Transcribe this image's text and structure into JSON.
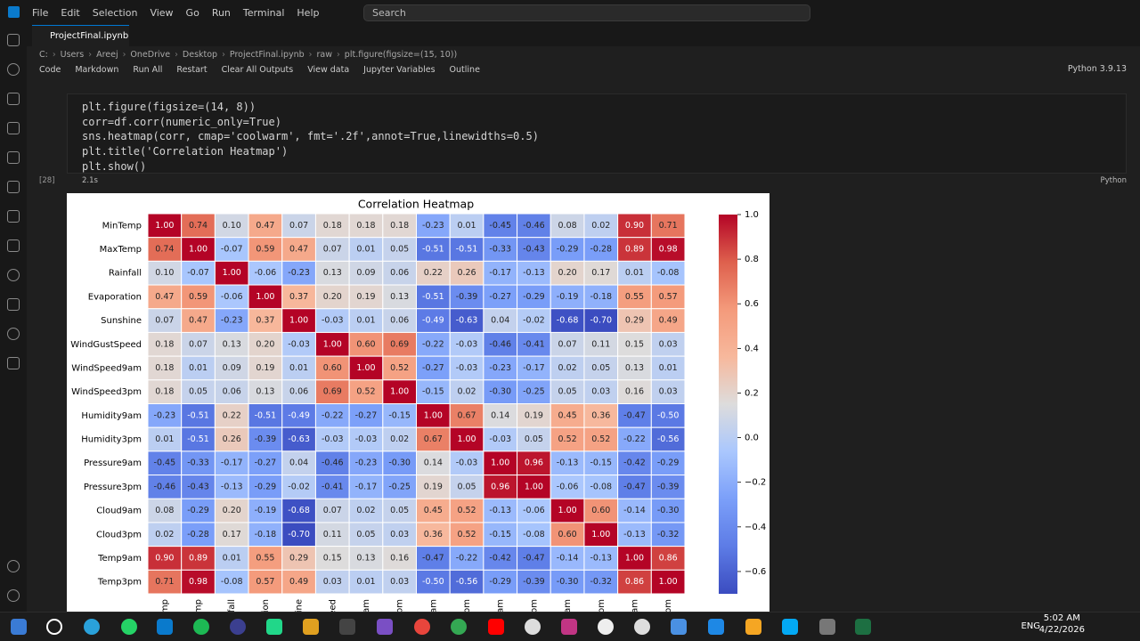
{
  "menu": [
    "File",
    "Edit",
    "Selection",
    "View",
    "Go",
    "Run",
    "Terminal",
    "Help"
  ],
  "search": "Search",
  "tab": "ProjectFinal.ipynb",
  "breadcrumb": [
    "C:",
    "Users",
    "Areej",
    "OneDrive",
    "Desktop",
    "ProjectFinal.ipynb",
    "raw",
    "plt.figure(figsize=(15, 10))"
  ],
  "toolbar": [
    "Code",
    "Markdown",
    "Run All",
    "Restart",
    "Clear All Outputs",
    "View data",
    "Jupyter Variables",
    "Outline"
  ],
  "kernel": "Python 3.9.13",
  "cell": {
    "exec_count": "[28]",
    "time": "2.1s",
    "language": "Python",
    "lines": [
      "plt.figure(figsize=(14, 8))",
      "corr=df.corr(numeric_only=True)",
      "sns.heatmap(corr, cmap='coolwarm', fmt='.2f',annot=True,linewidths=0.5)",
      "plt.title('Correlation Heatmap')",
      "plt.show()"
    ]
  },
  "chart_data": {
    "type": "heatmap",
    "title": "Correlation Heatmap",
    "cmap": "coolwarm",
    "categories": [
      "MinTemp",
      "MaxTemp",
      "Rainfall",
      "Evaporation",
      "Sunshine",
      "WindGustSpeed",
      "WindSpeed9am",
      "WindSpeed3pm",
      "Humidity9am",
      "Humidity3pm",
      "Pressure9am",
      "Pressure3pm",
      "Cloud9am",
      "Cloud3pm",
      "Temp9am",
      "Temp3pm"
    ],
    "values": [
      [
        1,
        0.74,
        0.1,
        0.47,
        0.07,
        0.18,
        0.18,
        0.18,
        -0.23,
        0.01,
        -0.45,
        -0.46,
        0.08,
        0.02,
        0.9,
        0.71
      ],
      [
        0.74,
        1,
        -0.07,
        0.59,
        0.47,
        0.07,
        0.01,
        0.05,
        -0.51,
        -0.51,
        -0.33,
        -0.43,
        -0.29,
        -0.28,
        0.89,
        0.98
      ],
      [
        0.1,
        -0.07,
        1,
        -0.06,
        -0.23,
        0.13,
        0.09,
        0.06,
        0.22,
        0.26,
        -0.17,
        -0.13,
        0.2,
        0.17,
        0.01,
        -0.08
      ],
      [
        0.47,
        0.59,
        -0.06,
        1,
        0.37,
        0.2,
        0.19,
        0.13,
        -0.51,
        -0.39,
        -0.27,
        -0.29,
        -0.19,
        -0.18,
        0.55,
        0.57
      ],
      [
        0.07,
        0.47,
        -0.23,
        0.37,
        1,
        -0.03,
        0.01,
        0.06,
        -0.49,
        -0.63,
        0.04,
        -0.02,
        -0.68,
        -0.7,
        0.29,
        0.49
      ],
      [
        0.18,
        0.07,
        0.13,
        0.2,
        -0.03,
        1,
        0.6,
        0.69,
        -0.22,
        -0.03,
        -0.46,
        -0.41,
        0.07,
        0.11,
        0.15,
        0.03
      ],
      [
        0.18,
        0.01,
        0.09,
        0.19,
        0.01,
        0.6,
        1,
        0.52,
        -0.27,
        -0.03,
        -0.23,
        -0.17,
        0.02,
        0.05,
        0.13,
        0.01
      ],
      [
        0.18,
        0.05,
        0.06,
        0.13,
        0.06,
        0.69,
        0.52,
        1,
        -0.15,
        0.02,
        -0.3,
        -0.25,
        0.05,
        0.03,
        0.16,
        0.03
      ],
      [
        -0.23,
        -0.51,
        0.22,
        -0.51,
        -0.49,
        -0.22,
        -0.27,
        -0.15,
        1,
        0.67,
        0.14,
        0.19,
        0.45,
        0.36,
        -0.47,
        -0.5
      ],
      [
        0.01,
        -0.51,
        0.26,
        -0.39,
        -0.63,
        -0.03,
        -0.03,
        0.02,
        0.67,
        1,
        -0.03,
        0.05,
        0.52,
        0.52,
        -0.22,
        -0.56
      ],
      [
        -0.45,
        -0.33,
        -0.17,
        -0.27,
        0.04,
        -0.46,
        -0.23,
        -0.3,
        0.14,
        -0.03,
        1,
        0.96,
        -0.13,
        -0.15,
        -0.42,
        -0.29
      ],
      [
        -0.46,
        -0.43,
        -0.13,
        -0.29,
        -0.02,
        -0.41,
        -0.17,
        -0.25,
        0.19,
        0.05,
        0.96,
        1,
        -0.06,
        -0.08,
        -0.47,
        -0.39
      ],
      [
        0.08,
        -0.29,
        0.2,
        -0.19,
        -0.68,
        0.07,
        0.02,
        0.05,
        0.45,
        0.52,
        -0.13,
        -0.06,
        1,
        0.6,
        -0.14,
        -0.3
      ],
      [
        0.02,
        -0.28,
        0.17,
        -0.18,
        -0.7,
        0.11,
        0.05,
        0.03,
        0.36,
        0.52,
        -0.15,
        -0.08,
        0.6,
        1,
        -0.13,
        -0.32
      ],
      [
        0.9,
        0.89,
        0.01,
        0.55,
        0.29,
        0.15,
        0.13,
        0.16,
        -0.47,
        -0.22,
        -0.42,
        -0.47,
        -0.14,
        -0.13,
        1,
        0.86
      ],
      [
        0.71,
        0.98,
        -0.08,
        0.57,
        0.49,
        0.03,
        0.01,
        0.03,
        -0.5,
        -0.56,
        -0.29,
        -0.39,
        -0.3,
        -0.32,
        0.86,
        1
      ]
    ],
    "value_labels": [
      [
        "1.00",
        "0.74",
        "0.10",
        "0.47",
        "0.07",
        "0.18",
        "0.18",
        "0.18",
        "-0.23",
        "0.01",
        "-0.45",
        "-0.46",
        "0.08",
        "0.02",
        "0.90",
        "0.71"
      ],
      [
        "0.74",
        "1.00",
        "-0.07",
        "0.59",
        "0.47",
        "0.07",
        "0.01",
        "0.05",
        "-0.51",
        "-0.51",
        "-0.33",
        "-0.43",
        "-0.29",
        "-0.28",
        "0.89",
        "0.98"
      ],
      [
        "0.10",
        "-0.07",
        "1.00",
        "-0.06",
        "-0.23",
        "0.13",
        "0.09",
        "0.06",
        "0.22",
        "0.26",
        "-0.17",
        "-0.13",
        "0.20",
        "0.17",
        "0.01",
        "-0.08"
      ],
      [
        "0.47",
        "0.59",
        "-0.06",
        "1.00",
        "0.37",
        "0.20",
        "0.19",
        "0.13",
        "-0.51",
        "-0.39",
        "-0.27",
        "-0.29",
        "-0.19",
        "-0.18",
        "0.55",
        "0.57"
      ],
      [
        "0.07",
        "0.47",
        "-0.23",
        "0.37",
        "1.00",
        "-0.03",
        "0.01",
        "0.06",
        "-0.49",
        "-0.63",
        "0.04",
        "-0.02",
        "-0.68",
        "-0.70",
        "0.29",
        "0.49"
      ],
      [
        "0.18",
        "0.07",
        "0.13",
        "0.20",
        "-0.03",
        "1.00",
        "0.60",
        "0.69",
        "-0.22",
        "-0.03",
        "-0.46",
        "-0.41",
        "0.07",
        "0.11",
        "0.15",
        "0.03"
      ],
      [
        "0.18",
        "0.01",
        "0.09",
        "0.19",
        "0.01",
        "0.60",
        "1.00",
        "0.52",
        "-0.27",
        "-0.03",
        "-0.23",
        "-0.17",
        "0.02",
        "0.05",
        "0.13",
        "0.01"
      ],
      [
        "0.18",
        "0.05",
        "0.06",
        "0.13",
        "0.06",
        "0.69",
        "0.52",
        "1.00",
        "-0.15",
        "0.02",
        "-0.30",
        "-0.25",
        "0.05",
        "0.03",
        "0.16",
        "0.03"
      ],
      [
        "-0.23",
        "-0.51",
        "0.22",
        "-0.51",
        "-0.49",
        "-0.22",
        "-0.27",
        "-0.15",
        "1.00",
        "0.67",
        "0.14",
        "0.19",
        "0.45",
        "0.36",
        "-0.47",
        "-0.50"
      ],
      [
        "0.01",
        "-0.51",
        "0.26",
        "-0.39",
        "-0.63",
        "-0.03",
        "-0.03",
        "0.02",
        "0.67",
        "1.00",
        "-0.03",
        "0.05",
        "0.52",
        "0.52",
        "-0.22",
        "-0.56"
      ],
      [
        "-0.45",
        "-0.33",
        "-0.17",
        "-0.27",
        "0.04",
        "-0.46",
        "-0.23",
        "-0.30",
        "0.14",
        "-0.03",
        "1.00",
        "0.96",
        "-0.13",
        "-0.15",
        "-0.42",
        "-0.29"
      ],
      [
        "-0.46",
        "-0.43",
        "-0.13",
        "-0.29",
        "-0.02",
        "-0.41",
        "-0.17",
        "-0.25",
        "0.19",
        "0.05",
        "0.96",
        "1.00",
        "-0.06",
        "-0.08",
        "-0.47",
        "-0.39"
      ],
      [
        "0.08",
        "-0.29",
        "0.20",
        "-0.19",
        "-0.68",
        "0.07",
        "0.02",
        "0.05",
        "0.45",
        "0.52",
        "-0.13",
        "-0.06",
        "1.00",
        "0.60",
        "-0.14",
        "-0.30"
      ],
      [
        "0.02",
        "-0.28",
        "0.17",
        "-0.18",
        "-0.70",
        "0.11",
        "0.05",
        "0.03",
        "0.36",
        "0.52",
        "-0.15",
        "-0.08",
        "0.60",
        "1.00",
        "-0.13",
        "-0.32"
      ],
      [
        "0.90",
        "0.89",
        "0.01",
        "0.55",
        "0.29",
        "0.15",
        "0.13",
        "0.16",
        "-0.47",
        "-0.22",
        "-0.42",
        "-0.47",
        "-0.14",
        "-0.13",
        "1.00",
        "0.86"
      ],
      [
        "0.71",
        "0.98",
        "-0.08",
        "0.57",
        "0.49",
        "0.03",
        "0.01",
        "0.03",
        "-0.50",
        "-0.56",
        "-0.29",
        "-0.39",
        "-0.30",
        "-0.32",
        "0.86",
        "1.00"
      ]
    ],
    "ylim": [
      -0.7,
      1
    ],
    "yticks": [
      {
        "value": 1,
        "label": "1.0"
      },
      0.8,
      0.6,
      0.4,
      0.2,
      {
        "value": 0,
        "label": "0.0"
      },
      {
        "value": -0.2,
        "label": "−0.2"
      },
      {
        "value": -0.4,
        "label": "−0.4"
      },
      {
        "value": -0.6,
        "label": "−0.6"
      }
    ]
  },
  "taskbar": {
    "language": "ENG",
    "time": "5:02 AM",
    "date": "4/22/2026"
  }
}
